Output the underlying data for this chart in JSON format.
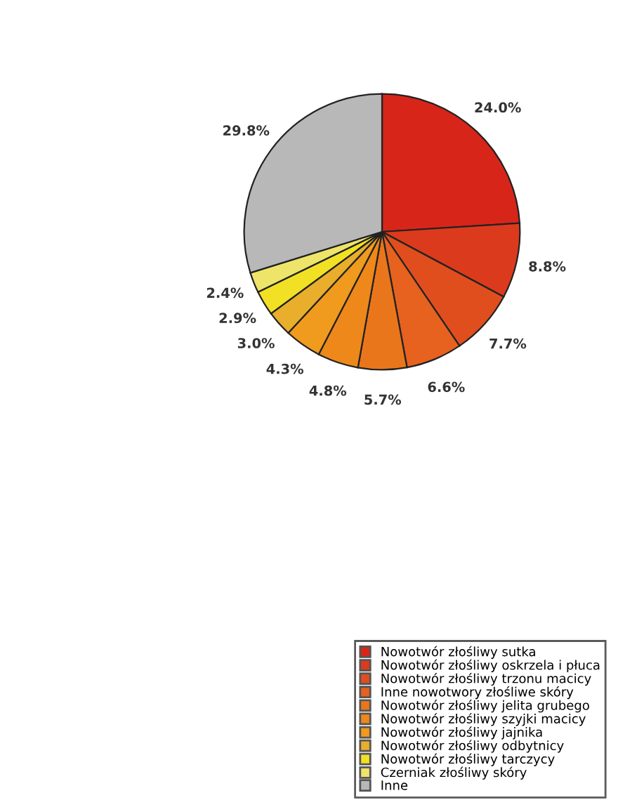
{
  "chart_data": {
    "type": "pie",
    "categories": [
      "Nowotwór złośliwy sutka",
      "Nowotwór złośliwy oskrzela i płuca",
      "Nowotwór złośliwy trzonu macicy",
      "Inne nowotwory złośliwe skóry",
      "Nowotwór złośliwy jelita grubego",
      "Nowotwór złośliwy szyjki macicy",
      "Nowotwór złośliwy jajnika",
      "Nowotwór złośliwy odbytnicy",
      "Nowotwór złośliwy tarczycy",
      "Czerniak złośliwy skóry",
      "Inne"
    ],
    "values": [
      24.0,
      8.8,
      7.7,
      6.6,
      5.7,
      4.8,
      4.3,
      3.0,
      2.9,
      2.4,
      29.8
    ],
    "value_labels": [
      "24.0%",
      "8.8%",
      "7.7%",
      "6.6%",
      "5.7%",
      "4.8%",
      "4.3%",
      "3.0%",
      "2.9%",
      "2.4%",
      "29.8%"
    ],
    "colors": [
      "#d8251a",
      "#dc3a1c",
      "#e04e1e",
      "#e6621e",
      "#ea761c",
      "#ee881a",
      "#f09a1e",
      "#e8ae2c",
      "#f2e024",
      "#eee46a",
      "#b8b8b8"
    ],
    "legend": "bottom right"
  }
}
